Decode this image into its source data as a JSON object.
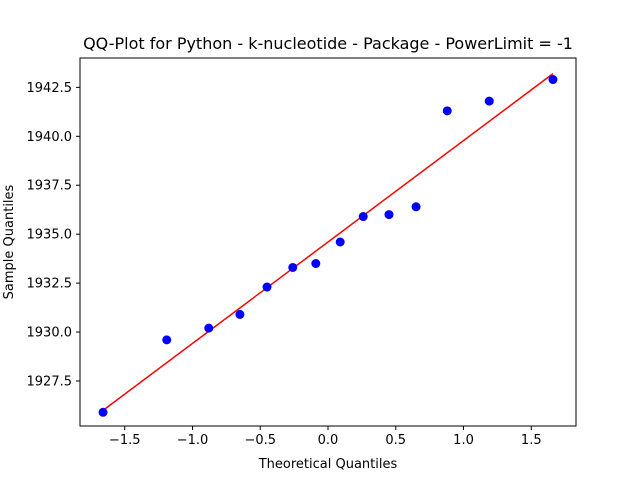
{
  "chart_data": {
    "type": "scatter",
    "title": "QQ-Plot for Python - k-nucleotide - Package - PowerLimit = -1",
    "xlabel": "Theoretical Quantiles",
    "ylabel": "Sample Quantiles",
    "xlim": [
      -1.83,
      1.83
    ],
    "ylim": [
      1925.2,
      1944.0
    ],
    "xticks": [
      -1.5,
      -1.0,
      -0.5,
      0.0,
      0.5,
      1.0,
      1.5
    ],
    "xtick_labels": [
      "−1.5",
      "−1.0",
      "−0.5",
      "0.0",
      "0.5",
      "1.0",
      "1.5"
    ],
    "yticks": [
      1927.5,
      1930.0,
      1932.5,
      1935.0,
      1937.5,
      1940.0,
      1942.5
    ],
    "ytick_labels": [
      "1927.5",
      "1930.0",
      "1932.5",
      "1935.0",
      "1937.5",
      "1940.0",
      "1942.5"
    ],
    "series": [
      {
        "name": "samples",
        "color": "#0000ff",
        "x": [
          -1.66,
          -1.19,
          -0.88,
          -0.65,
          -0.45,
          -0.26,
          -0.09,
          0.09,
          0.26,
          0.45,
          0.65,
          0.88,
          1.19,
          1.66
        ],
        "y": [
          1925.9,
          1929.6,
          1930.2,
          1930.9,
          1932.3,
          1933.3,
          1933.5,
          1934.6,
          1935.9,
          1936.0,
          1936.4,
          1941.3,
          1941.8,
          1942.9
        ]
      }
    ],
    "fit_line": {
      "color": "#ff0000",
      "x": [
        -1.66,
        1.66
      ],
      "y": [
        1926.0,
        1943.2
      ]
    },
    "grid": false,
    "legend": "none"
  }
}
